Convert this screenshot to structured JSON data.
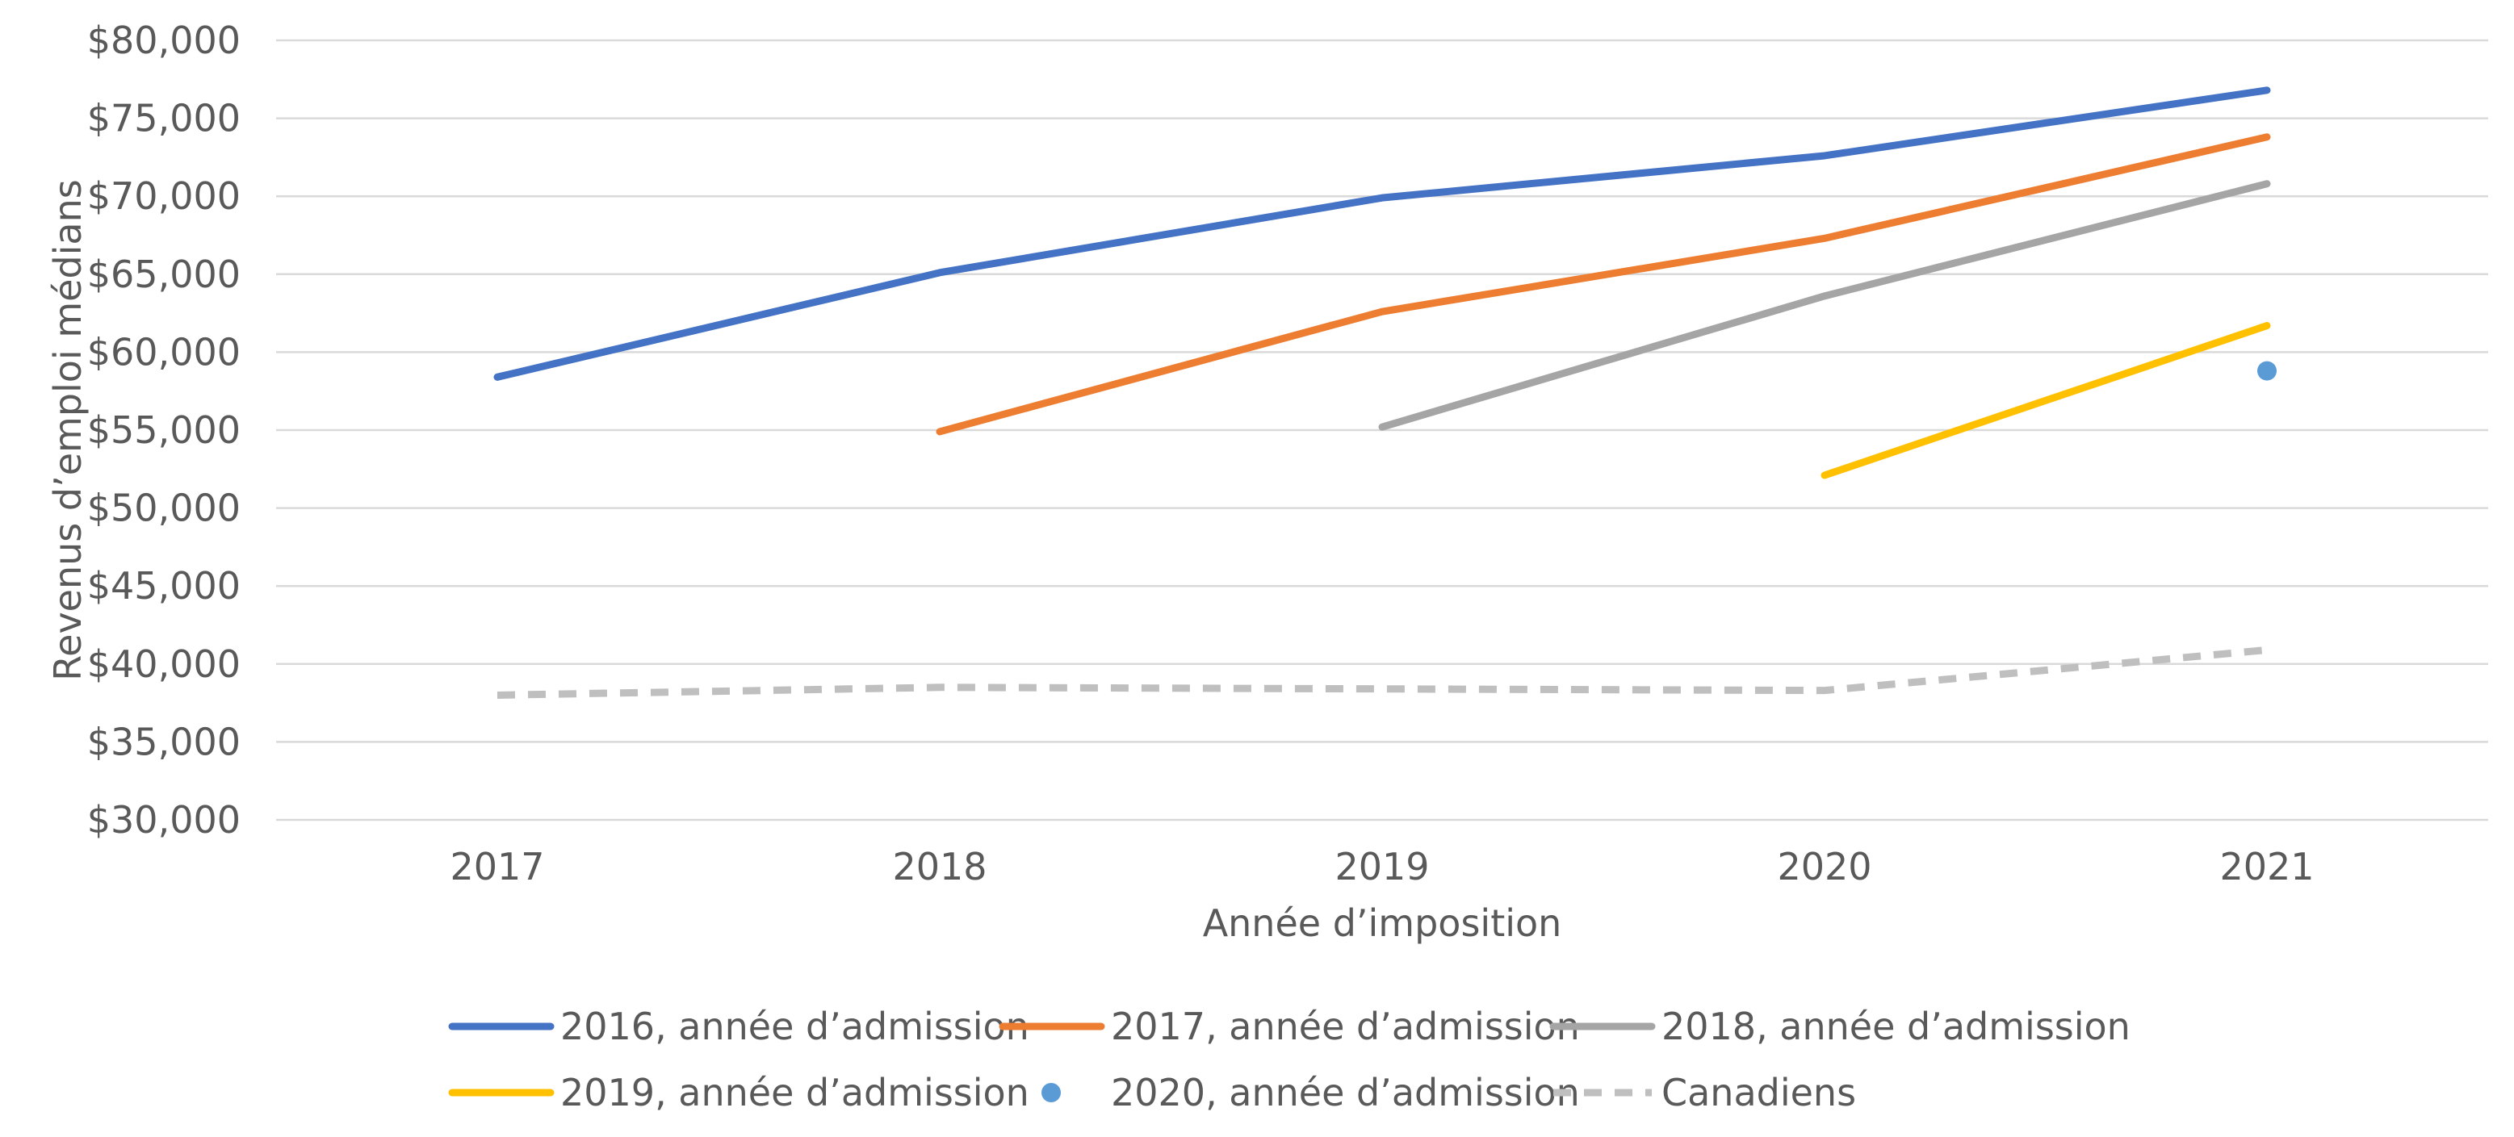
{
  "chart_data": {
    "type": "line",
    "title": "",
    "xlabel": "Année d’imposition",
    "ylabel": "Revenus d’emploi médians",
    "categories": [
      "2017",
      "2018",
      "2019",
      "2020",
      "2021"
    ],
    "ylim": [
      30000,
      80000
    ],
    "ytick_step": 5000,
    "ytick_labels": [
      "$30,000",
      "$35,000",
      "$40,000",
      "$45,000",
      "$50,000",
      "$55,000",
      "$60,000",
      "$65,000",
      "$70,000",
      "$75,000",
      "$80,000"
    ],
    "grid": true,
    "legend_position": "bottom",
    "series": [
      {
        "name": "2016, année d’admission",
        "color": "#4472C4",
        "style": "solid",
        "values": [
          58400,
          65100,
          69900,
          72600,
          76800
        ]
      },
      {
        "name": "2017, année d’admission",
        "color": "#ED7D31",
        "style": "solid",
        "values": [
          null,
          54900,
          62600,
          67300,
          73800
        ]
      },
      {
        "name": "2018, année d’admission",
        "color": "#A5A5A5",
        "style": "solid",
        "values": [
          null,
          null,
          55200,
          63600,
          70800
        ]
      },
      {
        "name": "2019, année d’admission",
        "color": "#FFC000",
        "style": "solid",
        "values": [
          null,
          null,
          null,
          52100,
          61700
        ]
      },
      {
        "name": "2020, année d’admission",
        "color": "#5B9BD5",
        "style": "marker",
        "values": [
          null,
          null,
          null,
          null,
          58800
        ]
      },
      {
        "name": "Canadiens",
        "color": "#BFBFBF",
        "style": "dashed",
        "values": [
          38000,
          38500,
          38400,
          38300,
          40900
        ]
      }
    ]
  }
}
